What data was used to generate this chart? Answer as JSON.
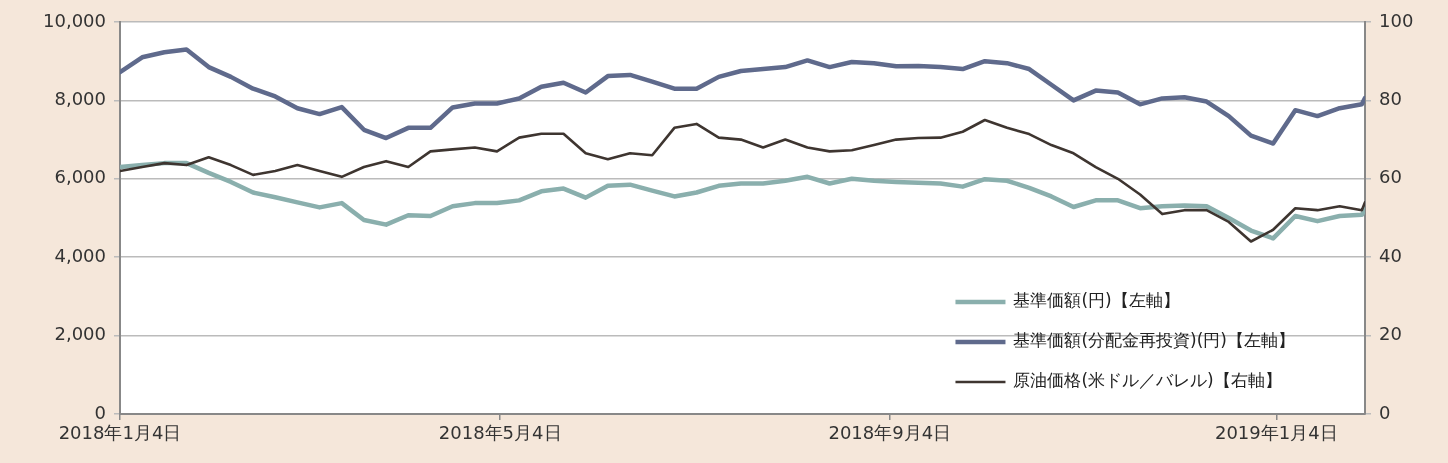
{
  "chart_data": {
    "type": "line",
    "x": [
      "2018-01-04",
      "2018-01-11",
      "2018-01-18",
      "2018-01-25",
      "2018-02-01",
      "2018-02-08",
      "2018-02-15",
      "2018-02-22",
      "2018-03-01",
      "2018-03-08",
      "2018-03-15",
      "2018-03-22",
      "2018-03-29",
      "2018-04-05",
      "2018-04-12",
      "2018-04-19",
      "2018-04-26",
      "2018-05-03",
      "2018-05-10",
      "2018-05-17",
      "2018-05-24",
      "2018-05-31",
      "2018-06-07",
      "2018-06-14",
      "2018-06-21",
      "2018-06-28",
      "2018-07-05",
      "2018-07-12",
      "2018-07-19",
      "2018-07-26",
      "2018-08-02",
      "2018-08-09",
      "2018-08-16",
      "2018-08-23",
      "2018-08-30",
      "2018-09-06",
      "2018-09-13",
      "2018-09-20",
      "2018-09-27",
      "2018-10-04",
      "2018-10-11",
      "2018-10-18",
      "2018-10-25",
      "2018-11-01",
      "2018-11-08",
      "2018-11-15",
      "2018-11-22",
      "2018-11-29",
      "2018-12-06",
      "2018-12-13",
      "2018-12-20",
      "2018-12-27",
      "2019-01-03",
      "2019-01-10",
      "2019-01-17",
      "2019-01-24",
      "2019-01-31",
      "2019-02-01"
    ],
    "series": [
      {
        "name": "基準価額(円)【左軸】",
        "color": "#8aafad",
        "values": [
          6300,
          6350,
          6400,
          6400,
          6150,
          5920,
          5650,
          5530,
          5400,
          5270,
          5380,
          4950,
          4830,
          5070,
          5050,
          5300,
          5380,
          5380,
          5450,
          5680,
          5750,
          5520,
          5820,
          5850,
          5700,
          5550,
          5650,
          5820,
          5880,
          5880,
          5950,
          6050,
          5880,
          6000,
          5950,
          5920,
          5900,
          5880,
          5800,
          5990,
          5950,
          5770,
          5550,
          5280,
          5450,
          5450,
          5250,
          5300,
          5320,
          5300,
          5000,
          4680,
          4480,
          5050,
          4920,
          5050,
          5080,
          5230
        ]
      },
      {
        "name": "基準価額(分配金再投資)(円)【左軸】",
        "color": "#5f6a8c",
        "values": [
          8720,
          9100,
          9230,
          9300,
          8850,
          8600,
          8300,
          8100,
          7800,
          7650,
          7830,
          7250,
          7040,
          7300,
          7300,
          7820,
          7920,
          7920,
          8050,
          8350,
          8450,
          8200,
          8620,
          8650,
          8480,
          8300,
          8300,
          8600,
          8750,
          8800,
          8850,
          9020,
          8850,
          8980,
          8950,
          8870,
          8880,
          8850,
          8800,
          9000,
          8950,
          8800,
          8400,
          8000,
          8250,
          8200,
          7900,
          8050,
          8080,
          7970,
          7600,
          7100,
          6900,
          7750,
          7600,
          7800,
          7900,
          8060
        ]
      },
      {
        "name": "原油価格(米ドル／バレル)【右軸】",
        "color": "#3e3530",
        "axis": "y2",
        "values": [
          62,
          63,
          64,
          63.5,
          65.5,
          63.5,
          61,
          62,
          63.5,
          62,
          60.5,
          63,
          64.5,
          63,
          67,
          67.5,
          68,
          67,
          70.5,
          71.5,
          71.5,
          66.5,
          65,
          66.5,
          66,
          73,
          74,
          70.5,
          70,
          68,
          70,
          68,
          67,
          67.3,
          68.6,
          70,
          70.4,
          70.5,
          72,
          75,
          73,
          71.4,
          68.6,
          66.5,
          63,
          60,
          56,
          51,
          52,
          52,
          49,
          44,
          47,
          52.5,
          52,
          53,
          52,
          54
        ]
      }
    ],
    "xlim": [
      "2018-01-04",
      "2019-02-01"
    ],
    "xticks": [
      {
        "value": "2018-01-04",
        "label": "2018年1月4日"
      },
      {
        "value": "2018-05-04",
        "label": "2018年5月4日"
      },
      {
        "value": "2018-09-04",
        "label": "2018年9月4日"
      },
      {
        "value": "2019-01-04",
        "label": "2019年1月4日"
      }
    ],
    "ylim": [
      0,
      10000
    ],
    "yticks": [
      0,
      {
        "value": 2000,
        "label": "2,000"
      },
      {
        "value": 4000,
        "label": "4,000"
      },
      {
        "value": 6000,
        "label": "6,000"
      },
      {
        "value": 8000,
        "label": "8,000"
      },
      {
        "value": 10000,
        "label": "10,000"
      }
    ],
    "y2lim": [
      0,
      100
    ],
    "y2ticks": [
      0,
      20,
      40,
      60,
      80,
      100
    ],
    "grid": "y",
    "legend": "bottom right",
    "marker": "none",
    "line_style": "solid"
  }
}
